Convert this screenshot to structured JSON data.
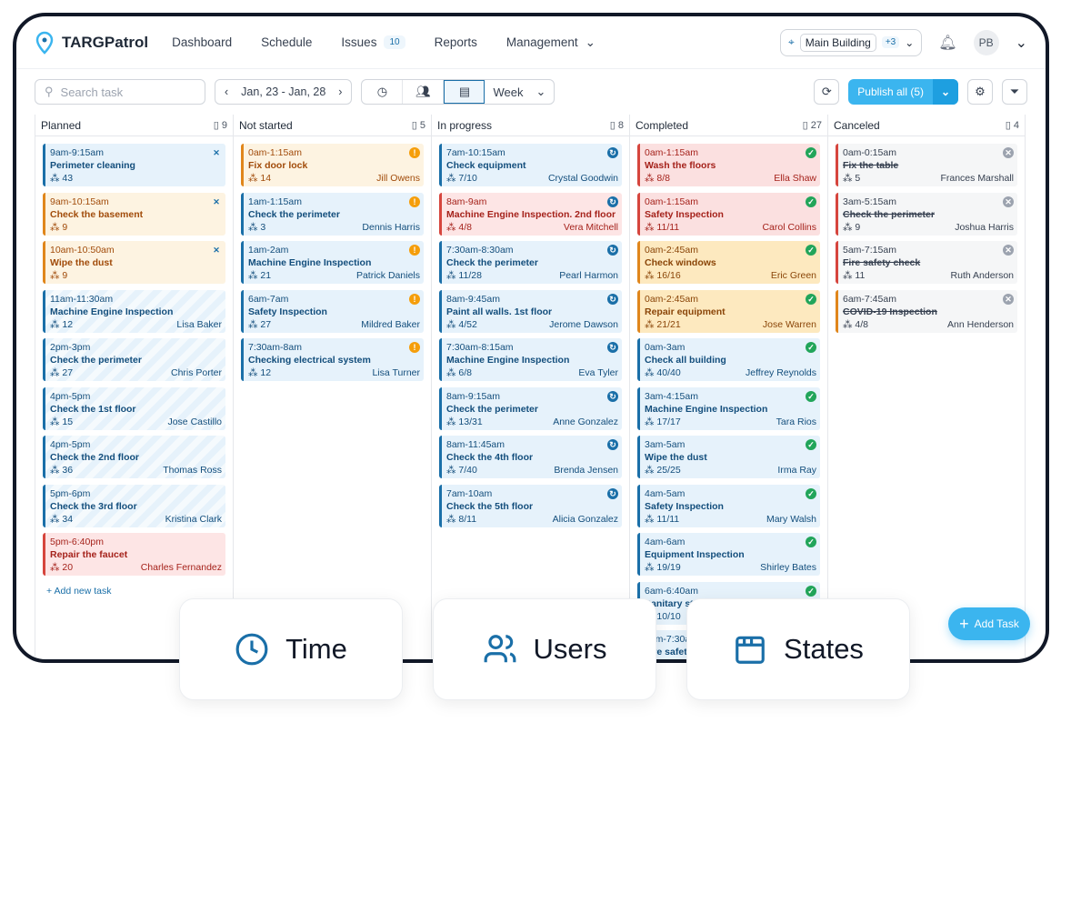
{
  "app": {
    "name": "TARGPatrol"
  },
  "nav": {
    "items": [
      "Dashboard",
      "Schedule",
      "Issues",
      "Reports",
      "Management"
    ],
    "issues_count": "10",
    "building": "Main Building",
    "building_extra": "+3",
    "avatar": "PB"
  },
  "toolbar": {
    "search_placeholder": "Search task",
    "date_range": "Jan, 23 - Jan, 28",
    "view": "Week",
    "publish": "Publish all (5)"
  },
  "colors": {
    "accent": "#3bb5ef",
    "primary": "#1a6fa8",
    "warning": "#e0861b",
    "danger": "#d6453d",
    "success": "#22a55a"
  },
  "columns": [
    {
      "title": "Planned",
      "count": "9",
      "add_label": "Add new task",
      "cards": [
        {
          "time": "9am-9:15am",
          "name": "Perimeter cleaning",
          "count": "43",
          "user": "",
          "kind": "blue",
          "status": "user-x"
        },
        {
          "time": "9am-10:15am",
          "name": "Check the basement",
          "count": "9",
          "user": "",
          "kind": "orange",
          "status": "user-x"
        },
        {
          "time": "10am-10:50am",
          "name": "Wipe the dust",
          "count": "9",
          "user": "",
          "kind": "orange",
          "status": "user-x"
        },
        {
          "time": "11am-11:30am",
          "name": "Machine Engine Inspection",
          "count": "12",
          "user": "Lisa Baker",
          "kind": "stripe",
          "status": ""
        },
        {
          "time": "2pm-3pm",
          "name": "Check the perimeter",
          "count": "27",
          "user": "Chris Porter",
          "kind": "stripe",
          "status": ""
        },
        {
          "time": "4pm-5pm",
          "name": "Check the 1st floor",
          "count": "15",
          "user": "Jose Castillo",
          "kind": "stripe",
          "status": ""
        },
        {
          "time": "4pm-5pm",
          "name": "Check the 2nd floor",
          "count": "36",
          "user": "Thomas Ross",
          "kind": "stripe",
          "status": ""
        },
        {
          "time": "5pm-6pm",
          "name": "Check the 3rd floor",
          "count": "34",
          "user": "Kristina Clark",
          "kind": "stripe",
          "status": ""
        },
        {
          "time": "5pm-6:40pm",
          "name": "Repair the faucet",
          "count": "20",
          "user": "Charles Fernandez",
          "kind": "red",
          "status": ""
        }
      ]
    },
    {
      "title": "Not started",
      "count": "5",
      "cards": [
        {
          "time": "0am-1:15am",
          "name": "Fix door lock",
          "count": "14",
          "user": "Jill Owens",
          "kind": "orange",
          "status": "warn"
        },
        {
          "time": "1am-1:15am",
          "name": "Check the perimeter",
          "count": "3",
          "user": "Dennis Harris",
          "kind": "blue",
          "status": "warn"
        },
        {
          "time": "1am-2am",
          "name": "Machine Engine Inspection",
          "count": "21",
          "user": "Patrick Daniels",
          "kind": "blue",
          "status": "warn"
        },
        {
          "time": "6am-7am",
          "name": "Safety Inspection",
          "count": "27",
          "user": "Mildred Baker",
          "kind": "blue",
          "status": "warn"
        },
        {
          "time": "7:30am-8am",
          "name": "Checking electrical system",
          "count": "12",
          "user": "Lisa Turner",
          "kind": "blue",
          "status": "warn"
        }
      ]
    },
    {
      "title": "In progress",
      "count": "8",
      "cards": [
        {
          "time": "7am-10:15am",
          "name": "Check equipment",
          "count": "7/10",
          "user": "Crystal Goodwin",
          "kind": "blue",
          "status": "progress"
        },
        {
          "time": "8am-9am",
          "name": "Machine Engine Inspection. 2nd floor",
          "count": "4/8",
          "user": "Vera Mitchell",
          "kind": "red",
          "status": "progress"
        },
        {
          "time": "7:30am-8:30am",
          "name": "Check the perimeter",
          "count": "11/28",
          "user": "Pearl Harmon",
          "kind": "blue",
          "status": "progress"
        },
        {
          "time": "8am-9:45am",
          "name": "Paint all walls. 1st floor",
          "count": "4/52",
          "user": "Jerome Dawson",
          "kind": "blue",
          "status": "progress"
        },
        {
          "time": "7:30am-8:15am",
          "name": "Machine Engine Inspection",
          "count": "6/8",
          "user": "Eva Tyler",
          "kind": "blue",
          "status": "progress"
        },
        {
          "time": "8am-9:15am",
          "name": "Check the perimeter",
          "count": "13/31",
          "user": "Anne Gonzalez",
          "kind": "blue",
          "status": "progress"
        },
        {
          "time": "8am-11:45am",
          "name": "Check the 4th floor",
          "count": "7/40",
          "user": "Brenda Jensen",
          "kind": "blue",
          "status": "progress"
        },
        {
          "time": "7am-10am",
          "name": "Check the 5th floor",
          "count": "8/11",
          "user": "Alicia Gonzalez",
          "kind": "blue",
          "status": "progress"
        }
      ]
    },
    {
      "title": "Completed",
      "count": "27",
      "cards": [
        {
          "time": "0am-1:15am",
          "name": "Wash the floors",
          "count": "8/8",
          "user": "Ella Shaw",
          "kind": "green-red",
          "status": "done"
        },
        {
          "time": "0am-1:15am",
          "name": "Safety Inspection",
          "count": "11/11",
          "user": "Carol Collins",
          "kind": "green-red",
          "status": "done"
        },
        {
          "time": "0am-2:45am",
          "name": "Check windows",
          "count": "16/16",
          "user": "Eric Green",
          "kind": "yellow",
          "status": "done"
        },
        {
          "time": "0am-2:45am",
          "name": "Repair equipment",
          "count": "21/21",
          "user": "Jose Warren",
          "kind": "yellow",
          "status": "done"
        },
        {
          "time": "0am-3am",
          "name": "Check all building",
          "count": "40/40",
          "user": "Jeffrey Reynolds",
          "kind": "blue",
          "status": "done"
        },
        {
          "time": "3am-4:15am",
          "name": "Machine Engine Inspection",
          "count": "17/17",
          "user": "Tara Rios",
          "kind": "blue",
          "status": "done"
        },
        {
          "time": "3am-5am",
          "name": "Wipe the dust",
          "count": "25/25",
          "user": "Irma Ray",
          "kind": "blue",
          "status": "done"
        },
        {
          "time": "4am-5am",
          "name": "Safety Inspection",
          "count": "11/11",
          "user": "Mary Walsh",
          "kind": "blue",
          "status": "done"
        },
        {
          "time": "4am-6am",
          "name": "Equipment Inspection",
          "count": "19/19",
          "user": "Shirley Bates",
          "kind": "blue",
          "status": "done"
        },
        {
          "time": "6am-6:40am",
          "name": "Sanitary st",
          "count": "10/10",
          "user": "",
          "kind": "blue",
          "status": "done"
        },
        {
          "time": "7am-7:30am",
          "name": "Fire safety",
          "count": "",
          "user": "",
          "kind": "blue",
          "status": ""
        }
      ]
    },
    {
      "title": "Canceled",
      "count": "4",
      "cards": [
        {
          "time": "0am-0:15am",
          "name": "Fix the table",
          "count": "5",
          "user": "Frances Marshall",
          "kind": "grey",
          "status": "cancel"
        },
        {
          "time": "3am-5:15am",
          "name": "Check the perimeter",
          "count": "9",
          "user": "Joshua Harris",
          "kind": "grey",
          "status": "cancel"
        },
        {
          "time": "5am-7:15am",
          "name": "Fire safety check",
          "count": "11",
          "user": "Ruth Anderson",
          "kind": "grey",
          "status": "cancel"
        },
        {
          "time": "6am-7:45am",
          "name": "COVID-19 Inspection",
          "count": "4/8",
          "user": "Ann Henderson",
          "kind": "grey2",
          "status": "cancel"
        }
      ]
    }
  ],
  "add_task": "Add Task",
  "features": [
    {
      "label": "Time",
      "icon": "clock-icon"
    },
    {
      "label": "Users",
      "icon": "users-icon"
    },
    {
      "label": "States",
      "icon": "calendar-icon"
    }
  ]
}
